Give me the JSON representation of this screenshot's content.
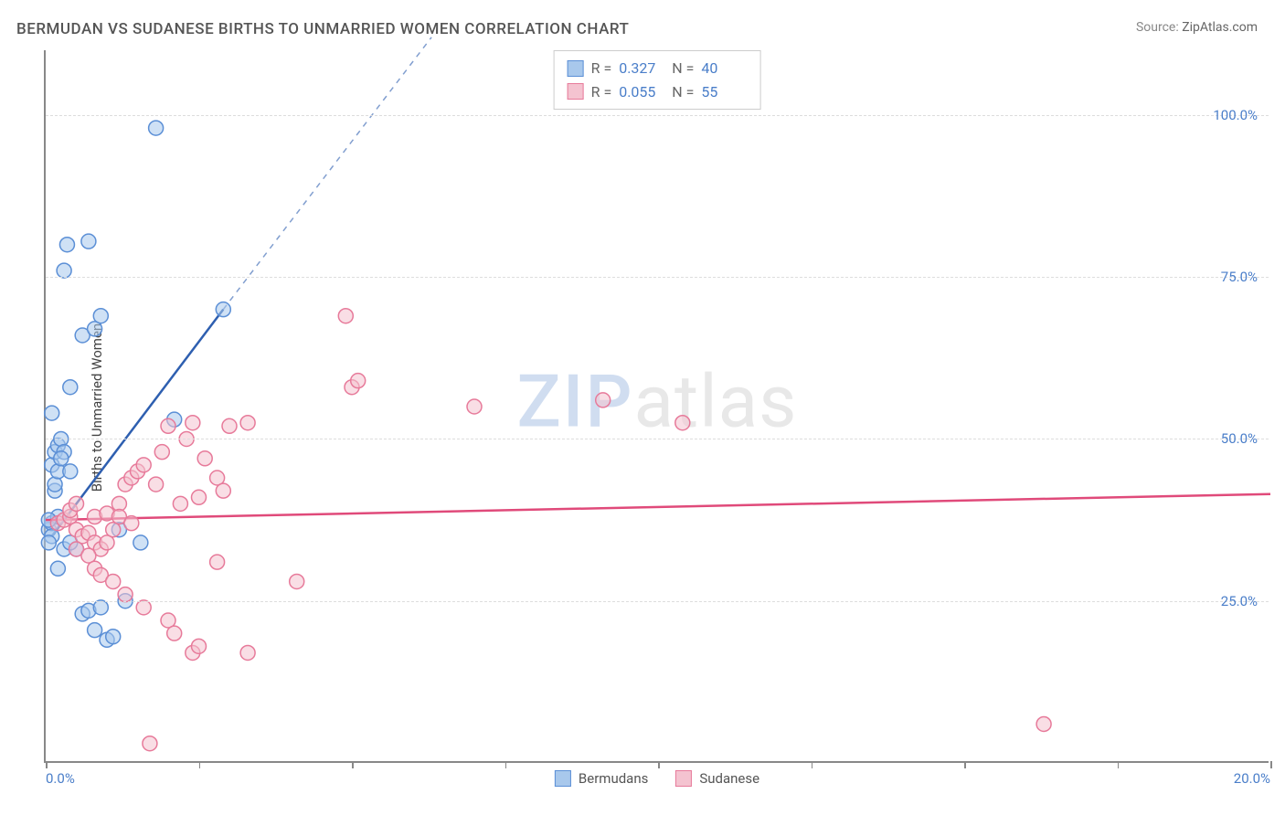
{
  "title": "BERMUDAN VS SUDANESE BIRTHS TO UNMARRIED WOMEN CORRELATION CHART",
  "source_label": "Source:",
  "source_value": "ZipAtlas.com",
  "y_axis_label": "Births to Unmarried Women",
  "watermark_a": "ZIP",
  "watermark_b": "atlas",
  "chart": {
    "type": "scatter",
    "xlim": [
      0,
      20
    ],
    "ylim": [
      0,
      110
    ],
    "x_ticks": [
      0,
      2.5,
      5,
      7.5,
      10,
      12.5,
      15,
      17.5,
      20
    ],
    "x_tick_labels": [
      "0.0%",
      "",
      "",
      "",
      "",
      "",
      "",
      "",
      "20.0%"
    ],
    "y_gridlines": [
      25,
      50,
      75,
      100
    ],
    "y_tick_labels": [
      "25.0%",
      "50.0%",
      "75.0%",
      "100.0%"
    ],
    "background_color": "#ffffff",
    "grid_color": "#dddddd",
    "axis_color": "#888888",
    "marker_radius": 8,
    "marker_opacity": 0.55,
    "series": [
      {
        "name": "Bermudans",
        "fill": "#a8c8ec",
        "stroke": "#5b8fd6",
        "trend_color": "#2e5fb0",
        "trend_p1": [
          0.1,
          35
        ],
        "trend_p2": [
          2.9,
          70
        ],
        "trend_dash_p2": [
          6.3,
          112
        ],
        "R_label": "R  =",
        "R": "0.327",
        "N_label": "N  =",
        "N": "40",
        "points": [
          [
            0.05,
            36
          ],
          [
            0.1,
            37
          ],
          [
            0.1,
            35
          ],
          [
            0.2,
            38
          ],
          [
            0.15,
            42
          ],
          [
            0.1,
            46
          ],
          [
            0.15,
            48
          ],
          [
            0.2,
            49
          ],
          [
            0.25,
            50
          ],
          [
            0.3,
            48
          ],
          [
            0.1,
            54
          ],
          [
            0.4,
            58
          ],
          [
            0.6,
            66
          ],
          [
            0.8,
            67
          ],
          [
            0.9,
            69
          ],
          [
            0.3,
            76
          ],
          [
            0.35,
            80
          ],
          [
            0.7,
            80.5
          ],
          [
            1.8,
            98
          ],
          [
            2.9,
            70
          ],
          [
            2.1,
            53
          ],
          [
            0.2,
            30
          ],
          [
            0.3,
            33
          ],
          [
            0.5,
            33
          ],
          [
            0.6,
            23
          ],
          [
            0.7,
            23.5
          ],
          [
            0.8,
            20.5
          ],
          [
            1.0,
            19
          ],
          [
            1.1,
            19.5
          ],
          [
            0.9,
            24
          ],
          [
            1.3,
            25
          ],
          [
            0.4,
            34
          ],
          [
            1.2,
            36
          ],
          [
            1.55,
            34
          ],
          [
            0.15,
            43
          ],
          [
            0.2,
            45
          ],
          [
            0.25,
            47
          ],
          [
            0.4,
            45
          ],
          [
            0.05,
            34
          ],
          [
            0.05,
            37.5
          ]
        ]
      },
      {
        "name": "Sudanese",
        "fill": "#f4c3d0",
        "stroke": "#e77a9a",
        "trend_color": "#e04a7a",
        "trend_p1": [
          0,
          37.5
        ],
        "trend_p2": [
          20,
          41.5
        ],
        "R_label": "R  =",
        "R": "0.055",
        "N_label": "N  =",
        "N": "55",
        "points": [
          [
            0.2,
            37
          ],
          [
            0.3,
            37.5
          ],
          [
            0.4,
            38
          ],
          [
            0.5,
            36
          ],
          [
            0.6,
            35
          ],
          [
            0.7,
            35.5
          ],
          [
            0.8,
            34
          ],
          [
            0.9,
            33
          ],
          [
            1.0,
            34
          ],
          [
            1.1,
            36
          ],
          [
            1.2,
            40
          ],
          [
            1.3,
            43
          ],
          [
            1.4,
            44
          ],
          [
            1.5,
            45
          ],
          [
            1.6,
            46
          ],
          [
            1.9,
            48
          ],
          [
            2.3,
            50
          ],
          [
            2.6,
            47
          ],
          [
            2.8,
            44
          ],
          [
            2.5,
            41
          ],
          [
            2.2,
            40
          ],
          [
            1.8,
            43
          ],
          [
            2.0,
            52
          ],
          [
            2.4,
            52.5
          ],
          [
            3.0,
            52
          ],
          [
            3.3,
            52.5
          ],
          [
            2.9,
            42
          ],
          [
            4.9,
            69
          ],
          [
            5.0,
            58
          ],
          [
            5.1,
            59
          ],
          [
            7.0,
            55
          ],
          [
            9.1,
            56
          ],
          [
            10.4,
            52.5
          ],
          [
            0.5,
            33
          ],
          [
            0.7,
            32
          ],
          [
            0.8,
            30
          ],
          [
            0.9,
            29
          ],
          [
            1.1,
            28
          ],
          [
            1.3,
            26
          ],
          [
            1.6,
            24
          ],
          [
            2.0,
            22
          ],
          [
            2.1,
            20
          ],
          [
            2.4,
            17
          ],
          [
            2.5,
            18
          ],
          [
            2.8,
            31
          ],
          [
            3.3,
            17
          ],
          [
            4.1,
            28
          ],
          [
            1.7,
            3
          ],
          [
            16.3,
            6
          ],
          [
            0.4,
            39
          ],
          [
            0.5,
            40
          ],
          [
            0.8,
            38
          ],
          [
            1.0,
            38.5
          ],
          [
            1.2,
            38
          ],
          [
            1.4,
            37
          ]
        ]
      }
    ]
  },
  "bottom_legend": [
    {
      "label": "Bermudans",
      "fill": "#a8c8ec",
      "stroke": "#5b8fd6"
    },
    {
      "label": "Sudanese",
      "fill": "#f4c3d0",
      "stroke": "#e77a9a"
    }
  ]
}
